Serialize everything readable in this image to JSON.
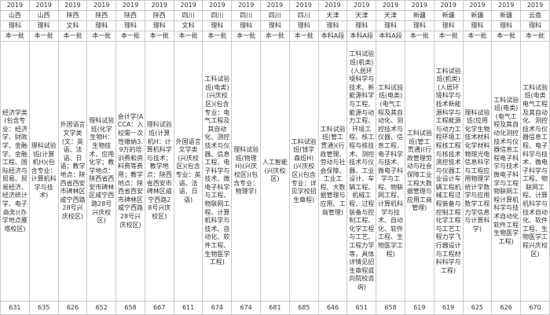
{
  "columns": [
    {
      "year": "2019",
      "province": "山西",
      "category": "理科",
      "batch": "本一批",
      "major": "经济学类(包含专业：经济学、财政学、金融学、金融工程、国际经济与贸易、贸易经济、经济统计学、电子商务)(办学地点雁塔校区)",
      "score": "631"
    },
    {
      "year": "2019",
      "province": "山西",
      "category": "理科",
      "batch": "本一批",
      "major": "理科试验班(计算机H)(包含专业：计算机科学与技术)",
      "score": "635"
    },
    {
      "year": "2019",
      "province": "陕西",
      "category": "文科",
      "batch": "本一批",
      "major": "外国语言文学类(文：英语、法语、日语；教学地点：陕西省西安市碑林区咸宁西路28号兴庆校区)",
      "score": "626"
    },
    {
      "year": "2019",
      "province": "陕西",
      "category": "理科",
      "batch": "本一批",
      "major": "理科试验班(化学生物H：生物技术、应用化学；教学地点：陕西省西安市碑林区咸宁西路28号兴庆校区)",
      "score": "652"
    },
    {
      "year": "2019",
      "province": "陕西",
      "category": "理科",
      "batch": "本一批",
      "major": "会计学(ACCA：入校需一次性缴纳3.9万的培训费和资料费等费用；教学地点：陕西省西安市碑林区咸宁西路28号兴庆校区)",
      "score": "658"
    },
    {
      "year": "2019",
      "province": "陕西",
      "category": "理科",
      "batch": "本一批",
      "major": "理科试验班(计算机H：计算机科学与技术；教学地点：陕西省西安市碑林区咸宁西路28号兴庆校区)",
      "score": "667"
    },
    {
      "year": "2019",
      "province": "四川",
      "category": "文科",
      "batch": "本一批",
      "major": "外国语言文学类(兴庆校区)(包含专业：英语、法语、日语)",
      "score": "611"
    },
    {
      "year": "2019",
      "province": "四川",
      "category": "理科",
      "batch": "本一批",
      "major": "工科试验班(电类)(兴庆校区)(包含专业：电气工程及其自动化、测控技术与仪器、信息工程、电子科学与技术、微电子科学与工程、物联网工程、计算机科学与技术、自动化、软件工程、生物医学工程)",
      "score": "674"
    },
    {
      "year": "2019",
      "province": "四川",
      "category": "理科",
      "batch": "本一批",
      "major": "理科试验班(物理H)(兴庆校区)(包含专业：物理学)",
      "score": "674"
    },
    {
      "year": "2019",
      "province": "四川",
      "category": "理科",
      "batch": "本一批",
      "major": "人工智能(兴庆校区)",
      "score": "681"
    },
    {
      "year": "2019",
      "province": "四川",
      "category": "理科",
      "batch": "本一批",
      "major": "工科试验班(钱学森班H)(兴庆校区)(包含专业：详见学校招生章程)",
      "score": "685"
    },
    {
      "year": "2019",
      "province": "天津",
      "category": "理科",
      "batch": "本科A段",
      "major": "工科试验班(管工贯通)(行政管理、劳动与社会保障、工业工程、大数据管理与应用、工商管理)",
      "score": "646"
    },
    {
      "year": "2019",
      "province": "天津",
      "category": "理科",
      "batch": "本科A段",
      "major": "工科试验班(机类)(人居环境科学与技术、新能源科学与工程、能源与动力工程、环境工程、核工程与核技术、测控技术与仪器、工业设计、车辆工程、机械工程、过程装备与控制工程、化学工程与工艺、工程力学等，具体详情见招生章程或向院校咨询)",
      "score": "651"
    },
    {
      "year": "2019",
      "province": "天津",
      "category": "理科",
      "batch": "本科A段",
      "major": "工科试验班(电类)(电气工程及其自动化、测控技术与仪器、信息工程、电子科学与技术、微电子科学与工程、物联网工程、计算机科学与技术、自动化、软件工程、生物医学工程)",
      "score": "658"
    },
    {
      "year": "2019",
      "province": "新疆",
      "category": "理科",
      "batch": "本一批",
      "major": "工科试验班(管工贯通)(行政管理劳动与社会保障工业工程大数据管理与应用工商管理)",
      "score": "619"
    },
    {
      "year": "2019",
      "province": "新疆",
      "category": "理科",
      "batch": "本一批",
      "major": "工科试验班(机类)(人居环境科学与技术新能源科学与工程能源与动力工程环境工程核工程与核技术测控技术与仪器工业设计车辆工程机械工程过程装备与控制工程化学工程与工艺工程力学飞行器设计与工程材料科学与工程)",
      "score": "619"
    },
    {
      "year": "2019",
      "province": "新疆",
      "category": "理科",
      "batch": "本一批",
      "major": "理科试验班(应用化学生物技术材料化学材料物理光电信息科学与工程应用物理学统计学数学与应用数学工程力学信息与计算科学)",
      "score": "625"
    },
    {
      "year": "2019",
      "province": "新疆",
      "category": "理科",
      "batch": "本一批",
      "major": "工科试验班(电类)(电气工程及其自动化测控技术与仪器信息工程电子科学与技术微电子科学与工程物联网工程计算机科学与技术自动化软件工程生物医学工程)",
      "score": "626"
    },
    {
      "year": "2019",
      "province": "云南",
      "category": "理科",
      "batch": "本一批",
      "major": "工科试验班(电类电气工程及其自动化、测控技术与仪器信息工程、电子科学与技术、微电子科学与工程、物联网工程、计算机科学与技术自动化、软件工程、生物医学工程兴庆校区)",
      "score": "670"
    }
  ]
}
